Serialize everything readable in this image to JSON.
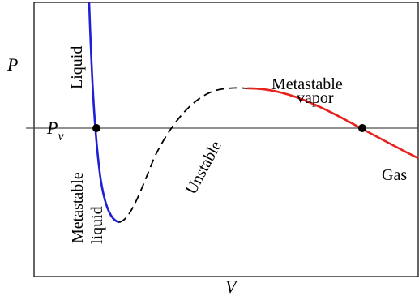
{
  "axes": {
    "y_label": "P",
    "x_label": "V"
  },
  "reference_line": {
    "label": "P",
    "label_subscript": "v"
  },
  "region_labels": {
    "liquid": "Liquid",
    "metastable_vapor_line1": "Metastable",
    "metastable_vapor_line2": "vapor",
    "unstable": "Unstable",
    "gas": "Gas",
    "metastable_liquid_line1": "Metastable",
    "metastable_liquid_line2": "liquid"
  },
  "colors": {
    "liquid_branch": "#1f1fd6",
    "gas_branch": "#e8211c",
    "unstable_branch": "#000000",
    "axes": "#000000",
    "reference_line": "#4d4d4d"
  }
}
